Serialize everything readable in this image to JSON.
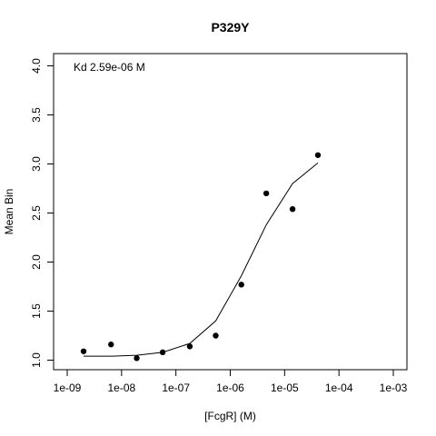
{
  "chart_data": {
    "type": "scatter",
    "title": "P329Y",
    "xlabel": "[FcgR] (M)",
    "ylabel": "Mean Bin",
    "x_scale": "log10",
    "xlim": [
      1e-09,
      0.001
    ],
    "ylim": [
      0.97,
      4.05
    ],
    "x_ticks": [
      1e-09,
      1e-08,
      1e-07,
      1e-06,
      1e-05,
      0.0001,
      0.001
    ],
    "x_tick_labels": [
      "1e-09",
      "1e-08",
      "1e-07",
      "1e-06",
      "1e-05",
      "1e-04",
      "1e-03"
    ],
    "y_ticks": [
      1.0,
      1.5,
      2.0,
      2.5,
      3.0,
      3.5,
      4.0
    ],
    "y_tick_labels": [
      "1.0",
      "1.5",
      "2.0",
      "2.5",
      "3.0",
      "3.5",
      "4.0"
    ],
    "annotation": "Kd 2.59e-06 M",
    "series": [
      {
        "kind": "points",
        "x": [
          2e-09,
          6.4e-09,
          1.9e-08,
          5.7e-08,
          1.8e-07,
          5.4e-07,
          1.6e-06,
          4.6e-06,
          1.4e-05,
          4.1e-05
        ],
        "y": [
          1.09,
          1.16,
          1.02,
          1.08,
          1.14,
          1.25,
          1.77,
          2.7,
          2.54,
          3.09
        ]
      },
      {
        "kind": "fit",
        "x": [
          2e-09,
          6.4e-09,
          1.9e-08,
          5.7e-08,
          1.8e-07,
          5.4e-07,
          1.6e-06,
          4.6e-06,
          1.4e-05,
          4.1e-05
        ],
        "y": [
          1.04,
          1.04,
          1.05,
          1.08,
          1.17,
          1.4,
          1.86,
          2.38,
          2.8,
          3.01
        ]
      }
    ],
    "grid": false,
    "legend": "none"
  }
}
